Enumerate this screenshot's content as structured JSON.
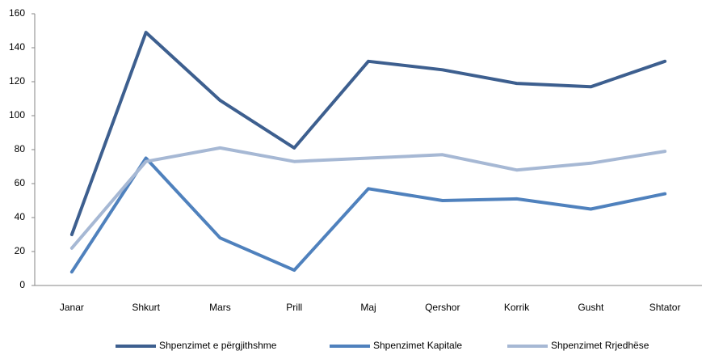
{
  "chart_data": {
    "type": "line",
    "categories": [
      "Janar",
      "Shkurt",
      "Mars",
      "Prill",
      "Maj",
      "Qershor",
      "Korrik",
      "Gusht",
      "Shtator"
    ],
    "series": [
      {
        "name": "Shpenzimet e përgjithshme",
        "color": "#3d5f8f",
        "values": [
          30,
          149,
          109,
          81,
          132,
          127,
          119,
          117,
          132
        ]
      },
      {
        "name": "Shpenzimet Kapitale",
        "color": "#4f81bd",
        "values": [
          8,
          75,
          28,
          9,
          57,
          50,
          51,
          45,
          54
        ]
      },
      {
        "name": "Shpenzimet Rrjedhëse",
        "color": "#a6b8d4",
        "values": [
          22,
          73,
          81,
          73,
          75,
          77,
          68,
          72,
          79
        ]
      }
    ],
    "ylim": [
      0,
      160
    ],
    "yticks": [
      0,
      20,
      40,
      60,
      80,
      100,
      120,
      140,
      160
    ],
    "grid": false,
    "legend": "bottom"
  }
}
